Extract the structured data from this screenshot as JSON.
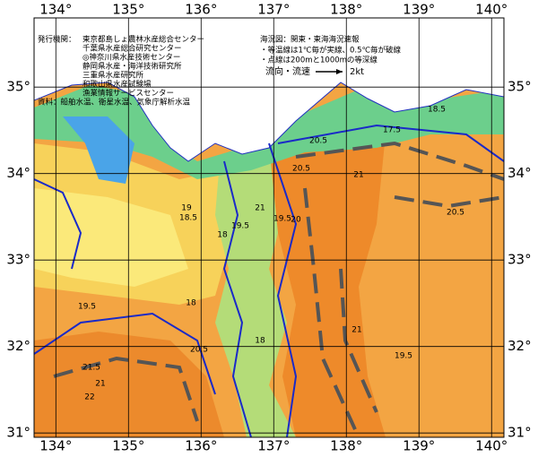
{
  "map": {
    "lon_ticks": [
      {
        "value": 134,
        "label": "134°"
      },
      {
        "value": 135,
        "label": "135°"
      },
      {
        "value": 136,
        "label": "136°"
      },
      {
        "value": 137,
        "label": "137°"
      },
      {
        "value": 138,
        "label": "138°"
      },
      {
        "value": 139,
        "label": "139°"
      },
      {
        "value": 140,
        "label": "140°"
      }
    ],
    "lat_ticks": [
      {
        "value": 35,
        "label": "35°"
      },
      {
        "value": 34,
        "label": "34°"
      },
      {
        "value": 33,
        "label": "33°"
      },
      {
        "value": 32,
        "label": "32°"
      },
      {
        "value": 31,
        "label": "31°"
      }
    ],
    "lon_range": [
      133.7,
      140.17
    ],
    "lat_range": [
      30.95,
      35.8
    ],
    "publishers_label": "発行機関：",
    "publishers": [
      "東京都島しょ農林水産総合センター",
      "千葉県水産総合研究センター",
      "◎神奈川県水産技術センター",
      "静岡県水産・海洋技術研究所",
      "三重県水産研究所",
      "和歌山県水産試験場",
      "漁業情報サービスセンター"
    ],
    "source": "資料：船舶水温、衛星水温、気象庁解析水温",
    "map_title": "海況図：関東・東海海況速報",
    "notes": [
      "・等温線は1℃毎が実線、0.5℃毎が破線",
      "・点線は200mと1000mの等深線"
    ],
    "current_label": "流向・流速",
    "current_scale": "2kt",
    "contour_labels": [
      "17.5",
      "18.5",
      "20.5",
      "21",
      "20.5",
      "20.5",
      "19.5",
      "18.5",
      "18",
      "19",
      "20",
      "19.5",
      "18",
      "20.5",
      "21",
      "21.5",
      "22",
      "21",
      "19.5",
      "18",
      "19.5",
      "21"
    ]
  }
}
